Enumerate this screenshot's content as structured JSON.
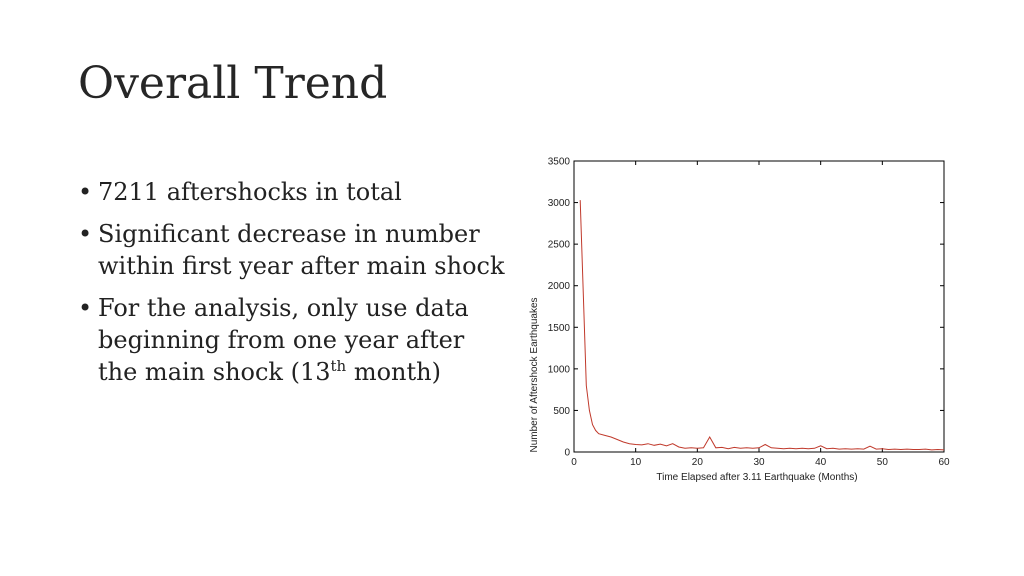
{
  "slide": {
    "title": "Overall Trend",
    "bullets": [
      {
        "text": "7211 aftershocks in total"
      },
      {
        "text": "Significant decrease in number within first year after main shock"
      },
      {
        "text_before": "For the analysis, only use data beginning from one year after the main shock (13",
        "sup": "th",
        "text_after": " month)"
      }
    ]
  },
  "chart_data": {
    "type": "line",
    "xlabel": "Time Elapsed after 3.11 Earthquake (Months)",
    "ylabel": "Number of Aftershock Earthquakes",
    "xlim": [
      0,
      60
    ],
    "ylim": [
      0,
      3500
    ],
    "x_ticks": [
      0,
      10,
      20,
      30,
      40,
      50,
      60
    ],
    "y_ticks": [
      0,
      500,
      1000,
      1500,
      2000,
      2500,
      3000,
      3500
    ],
    "grid": false,
    "line_color": "#c0392b",
    "series": [
      {
        "x": [
          1,
          1.5,
          2,
          2.5,
          3,
          3.5,
          4,
          5,
          6,
          7,
          8,
          9,
          10,
          11,
          12,
          13,
          14,
          15,
          16,
          17,
          18,
          19,
          20,
          21,
          22,
          23,
          24,
          25,
          26,
          27,
          28,
          29,
          30,
          31,
          32,
          33,
          34,
          35,
          36,
          37,
          38,
          39,
          40,
          41,
          42,
          43,
          44,
          45,
          46,
          47,
          48,
          49,
          50,
          51,
          52,
          53,
          54,
          55,
          56,
          57,
          58,
          59,
          60
        ],
        "values": [
          3030,
          1900,
          800,
          500,
          330,
          260,
          220,
          200,
          180,
          150,
          120,
          100,
          90,
          85,
          100,
          80,
          95,
          75,
          100,
          60,
          45,
          50,
          45,
          50,
          180,
          50,
          55,
          40,
          55,
          45,
          50,
          45,
          50,
          90,
          50,
          45,
          40,
          45,
          40,
          45,
          40,
          45,
          75,
          40,
          45,
          35,
          40,
          35,
          40,
          35,
          70,
          35,
          40,
          30,
          35,
          30,
          35,
          30,
          30,
          35,
          25,
          30,
          25
        ]
      }
    ]
  }
}
